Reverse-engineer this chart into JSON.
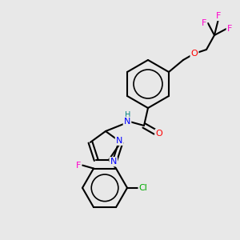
{
  "background_color": "#e8e8e8",
  "bond_color": "#000000",
  "atom_colors": {
    "N": "#0000ff",
    "O": "#ff0000",
    "F": "#ff00cc",
    "Cl": "#00aa00",
    "H": "#008080",
    "C": "#000000"
  },
  "figsize": [
    3.0,
    3.0
  ],
  "dpi": 100
}
